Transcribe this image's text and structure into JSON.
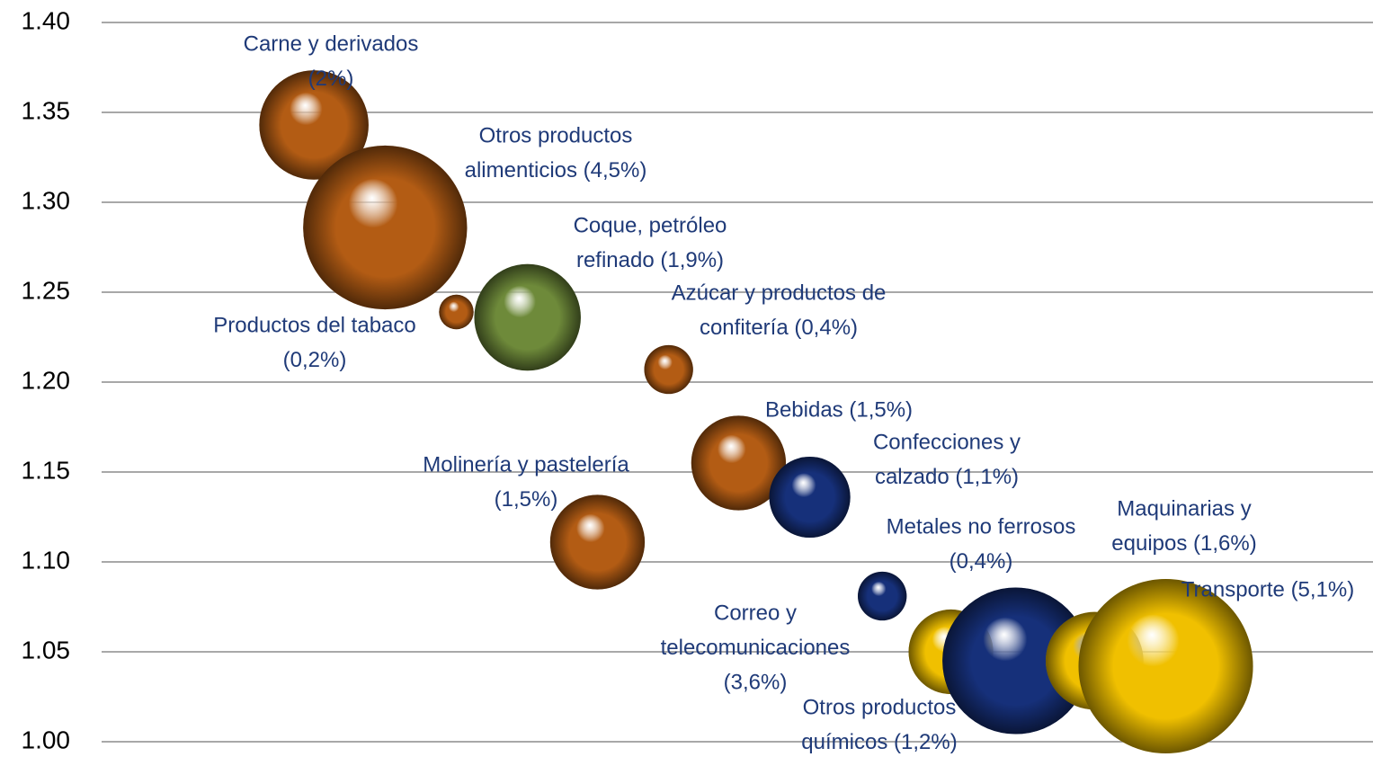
{
  "chart_data": {
    "type": "bubble",
    "ylim": [
      1.0,
      1.4
    ],
    "yticks": [
      {
        "value": 1.0,
        "label": "1.00"
      },
      {
        "value": 1.05,
        "label": "1.05"
      },
      {
        "value": 1.1,
        "label": "1.10"
      },
      {
        "value": 1.15,
        "label": "1.15"
      },
      {
        "value": 1.2,
        "label": "1.20"
      },
      {
        "value": 1.25,
        "label": "1.25"
      },
      {
        "value": 1.3,
        "label": "1.30"
      },
      {
        "value": 1.35,
        "label": "1.35"
      },
      {
        "value": 1.4,
        "label": "1.40"
      }
    ],
    "xlim": [
      0,
      100
    ],
    "grid": true,
    "x": [
      16.7,
      22.3,
      27.9,
      33.5,
      44.6,
      50.1,
      55.7,
      39.0,
      61.4,
      66.8,
      71.9,
      78.1,
      83.7
    ],
    "y": [
      1.343,
      1.286,
      1.239,
      1.236,
      1.207,
      1.155,
      1.136,
      1.111,
      1.081,
      1.05,
      1.045,
      1.045,
      1.042
    ],
    "sizes": [
      2,
      4.5,
      0.2,
      1.9,
      0.4,
      1.5,
      1.1,
      1.5,
      0.4,
      1.2,
      3.6,
      1.6,
      5.1
    ],
    "colors": [
      "#b35c14",
      "#b35c14",
      "#b35c14",
      "#6e8a3a",
      "#b35c14",
      "#b35c14",
      "#16307a",
      "#b35c14",
      "#16307a",
      "#f0c000",
      "#16307a",
      "#f0c000",
      "#f0c000"
    ],
    "labels": [
      [
        "Carne y derivados",
        "(2%)"
      ],
      [
        "Otros productos",
        "alimenticios (4,5%)"
      ],
      [
        "Productos del tabaco",
        "(0,2%)"
      ],
      [
        "Coque, petróleo",
        "refinado (1,9%)"
      ],
      [
        "Azúcar y productos de",
        "confitería (0,4%)"
      ],
      [
        "Bebidas (1,5%)"
      ],
      [
        "Confecciones y",
        "calzado (1,1%)"
      ],
      [
        "Molinería y pastelería",
        "(1,5%)"
      ],
      [
        "Metales no ferrosos",
        "(0,4%)"
      ],
      [
        "Otros productos",
        "químicos (1,2%)"
      ],
      [
        "Correo y",
        "telecomunicaciones",
        "(3,6%)"
      ],
      [
        "Maquinarias y",
        "equipos (1,6%)"
      ],
      [
        "Transporte (5,1%)"
      ]
    ]
  }
}
